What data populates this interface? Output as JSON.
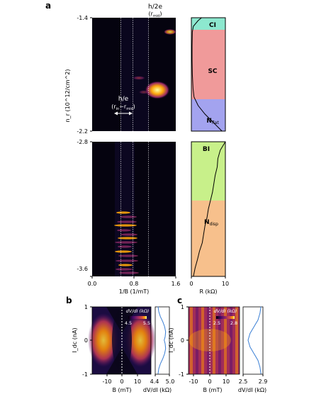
{
  "panels": {
    "a": "a",
    "b": "b",
    "c": "c"
  },
  "colors": {
    "CI": "#8de8cf",
    "SC": "#f09a9a",
    "Nflat": "#a3a3ef",
    "BI": "#c8f08a",
    "Ndisp": "#f7c08c",
    "trace": "#000000",
    "profile_line": "#3a7fd5",
    "colormap": "inferno"
  },
  "chart_data": [
    {
      "id": "a-map",
      "type": "heatmap",
      "xlabel": "1/B (1/mT)",
      "ylabel": "n_r (10^12/cm^2)",
      "xticks": [
        "0.0",
        "0.8",
        "1.6"
      ],
      "x_range": [
        0.0,
        1.6
      ],
      "upper_yticks": [
        "-1.4",
        "-2.2"
      ],
      "lower_yticks": [
        "-2.8",
        "-3.6"
      ],
      "upper_y_range": [
        -1.4,
        -2.2
      ],
      "lower_y_range": [
        -2.8,
        -3.6
      ],
      "annotations": {
        "h2e_top": "h/2e",
        "h2e_sub_main": "(r",
        "h2e_sub_index": "mid",
        "h2e_sub_close": ")",
        "he_top": "h/e",
        "he_sub_main": "(r",
        "he_sub_index_in": "in",
        "he_sub_mid": "~r",
        "he_sub_index_out": "mid",
        "he_sub_close": ")"
      },
      "guide_lines_x": [
        0.55,
        0.78,
        1.08
      ],
      "features": [
        {
          "x": 1.12,
          "y": -1.86,
          "intensity": 1.0,
          "label": "bright spot"
        },
        {
          "x": 1.45,
          "y": -1.48,
          "intensity": 0.7,
          "label": "upper-right streak"
        }
      ]
    },
    {
      "id": "a-resistance",
      "type": "line",
      "xlabel": "R (kΩ)",
      "xticks": [
        "0",
        "10"
      ],
      "x_range": [
        0,
        10
      ],
      "upper_regions": [
        {
          "name": "CI",
          "from": -1.4,
          "to": -1.5
        },
        {
          "name": "SC",
          "from": -1.5,
          "to": -1.96
        },
        {
          "name": "N",
          "sub": "flat",
          "from": -1.96,
          "to": -2.2
        }
      ],
      "lower_regions": [
        {
          "name": "BI",
          "from": -2.8,
          "to": -3.15
        },
        {
          "name": "N",
          "sub": "disp",
          "from": -3.15,
          "to": -3.6
        }
      ],
      "upper_trace": {
        "y": [
          -1.4,
          -1.42,
          -1.46,
          -1.5,
          -1.6,
          -1.7,
          -1.8,
          -1.9,
          -1.96,
          -2.02,
          -2.08,
          -2.14,
          -2.2
        ],
        "x": [
          3.0,
          2.0,
          0.6,
          0.3,
          0.2,
          0.2,
          0.3,
          0.5,
          0.8,
          2.0,
          4.0,
          6.5,
          9.0
        ]
      },
      "lower_trace": {
        "y": [
          -2.8,
          -2.85,
          -2.9,
          -2.95,
          -3.0,
          -3.05,
          -3.1,
          -3.15,
          -3.2,
          -3.25,
          -3.3,
          -3.35,
          -3.4,
          -3.45,
          -3.5,
          -3.55,
          -3.6
        ],
        "x": [
          10.0,
          8.5,
          7.8,
          7.6,
          7.0,
          6.6,
          6.2,
          5.6,
          5.0,
          4.6,
          4.0,
          3.6,
          3.2,
          2.4,
          1.8,
          1.1,
          0.6
        ]
      },
      "region_labels": {
        "CI": "CI",
        "SC": "SC",
        "Nflat_main": "N",
        "Nflat_sub": "flat",
        "BI": "BI",
        "Ndisp_main": "N",
        "Ndisp_sub": "disp"
      }
    },
    {
      "id": "b-map",
      "type": "heatmap",
      "xlabel": "B (mT)",
      "ylabel": "I_dc (nA)",
      "xticks": [
        "-10",
        "0",
        "10"
      ],
      "yticks": [
        "-1",
        "0",
        "1"
      ],
      "x_range": [
        -16,
        16
      ],
      "y_range": [
        -1,
        1
      ],
      "colorbar_label": "dV/dI (kΩ)",
      "colorbar_ticks": [
        "4.5",
        "5.5"
      ]
    },
    {
      "id": "b-profile",
      "type": "line",
      "xlabel": "dV/dI (kΩ)",
      "xticks": [
        "4.4",
        "5.0"
      ],
      "x_range": [
        4.4,
        5.0
      ],
      "y": [
        -1.0,
        -0.85,
        -0.7,
        -0.55,
        -0.4,
        -0.25,
        -0.1,
        0.0,
        0.1,
        0.25,
        0.4,
        0.55,
        0.7,
        0.85,
        1.0
      ],
      "x": [
        4.52,
        4.55,
        4.62,
        4.72,
        4.8,
        4.84,
        4.82,
        4.78,
        4.82,
        4.84,
        4.8,
        4.72,
        4.62,
        4.55,
        4.52
      ]
    },
    {
      "id": "c-map",
      "type": "heatmap",
      "xlabel": "B (mT)",
      "ylabel": "I_dc (nA)",
      "xticks": [
        "-10",
        "0",
        "10"
      ],
      "yticks": [
        "-1",
        "0",
        "1"
      ],
      "x_range": [
        -16,
        16
      ],
      "y_range": [
        -1,
        1
      ],
      "colorbar_label": "dV/dI (kΩ)",
      "colorbar_ticks": [
        "2.5",
        "2.8"
      ]
    },
    {
      "id": "c-profile",
      "type": "line",
      "xlabel": "dV/dI (kΩ)",
      "xticks": [
        "2.5",
        "2.9"
      ],
      "x_range": [
        2.5,
        2.9
      ],
      "y": [
        -1.0,
        -0.8,
        -0.6,
        -0.4,
        -0.2,
        0.0,
        0.2,
        0.4,
        0.6,
        0.8,
        1.0
      ],
      "x": [
        2.86,
        2.84,
        2.8,
        2.72,
        2.64,
        2.6,
        2.64,
        2.72,
        2.8,
        2.84,
        2.86
      ]
    }
  ]
}
